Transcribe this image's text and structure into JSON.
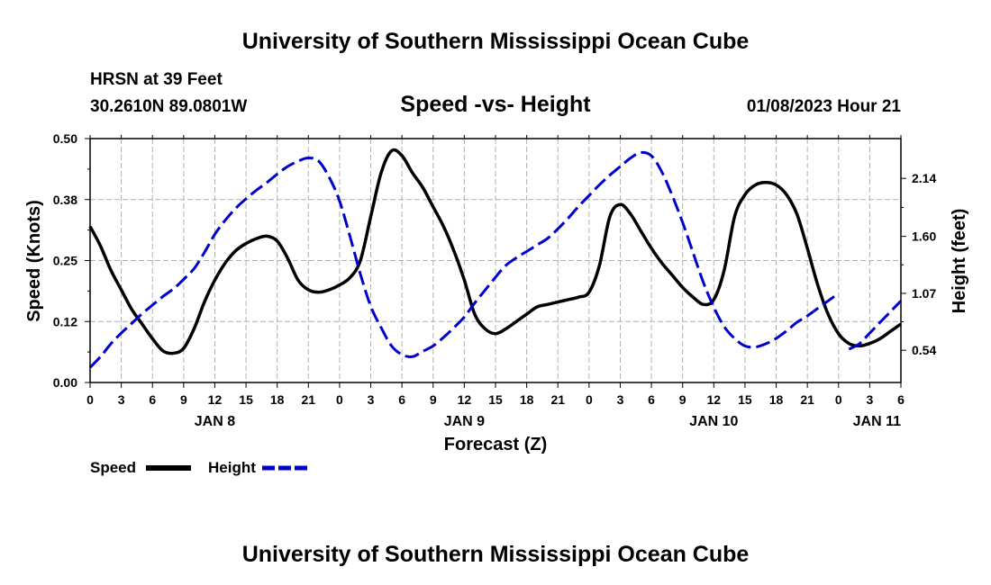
{
  "header": {
    "title": "University of Southern Mississippi Ocean Cube",
    "station": "HRSN at 39 Feet",
    "location": "30.2610N  89.0801W",
    "chart_title": "Speed -vs- Height",
    "timestamp": "01/08/2023 Hour 21",
    "footer_title": "University of Southern Mississippi Ocean Cube"
  },
  "colors": {
    "speed": "#000000",
    "height": "#0000cc",
    "grid": "#aaaaaa"
  },
  "chart_data": {
    "type": "line",
    "title": "Speed -vs- Height",
    "xlabel": "Forecast (Z)",
    "ylabel": "Speed (Knots)",
    "y2label": "Height (feet)",
    "xlim": [
      0,
      78
    ],
    "ylim": [
      0,
      0.5
    ],
    "y2lim": [
      0.24,
      2.51
    ],
    "x_tick_step": 3,
    "x_tick_labels": [
      "0",
      "3",
      "6",
      "9",
      "12",
      "15",
      "18",
      "21",
      "0",
      "3",
      "6",
      "9",
      "12",
      "15",
      "18",
      "21",
      "0",
      "3",
      "6",
      "9",
      "12",
      "15",
      "18",
      "21",
      "0",
      "3",
      "6"
    ],
    "y_ticks": [
      0,
      0.125,
      0.25,
      0.375,
      0.5
    ],
    "y_tick_labels": [
      "0.00",
      "0.12",
      "0.25",
      "0.38",
      "0.50"
    ],
    "y2_ticks": [
      0.54,
      1.07,
      1.6,
      2.14
    ],
    "y2_tick_labels": [
      "0.54",
      "1.07",
      "1.60",
      "2.14"
    ],
    "day_labels": [
      {
        "label": "JAN 8",
        "x": 12
      },
      {
        "label": "JAN 9",
        "x": 36
      },
      {
        "label": "JAN 10",
        "x": 60
      },
      {
        "label": "JAN 11",
        "x": 78
      }
    ],
    "series": [
      {
        "name": "Speed",
        "axis": "left",
        "style": "solid",
        "x": [
          0,
          1,
          2,
          3,
          4,
          5,
          6,
          7,
          8,
          9,
          10,
          11,
          12,
          13,
          14,
          15,
          16,
          17,
          18,
          19,
          20,
          21,
          22,
          23,
          24,
          25,
          26,
          27,
          28,
          29,
          30,
          31,
          32,
          33,
          34,
          35,
          36,
          37,
          38,
          39,
          40,
          41,
          42,
          43,
          44,
          45,
          46,
          47,
          48,
          49,
          50,
          51,
          52,
          53,
          54,
          55,
          56,
          57,
          58,
          59,
          60,
          61,
          62,
          63,
          64,
          65,
          66,
          67,
          68,
          69,
          70,
          71,
          72,
          73,
          74,
          75,
          76,
          77,
          78
        ],
        "values": [
          0.32,
          0.28,
          0.23,
          0.19,
          0.15,
          0.12,
          0.09,
          0.065,
          0.06,
          0.07,
          0.11,
          0.165,
          0.21,
          0.245,
          0.27,
          0.285,
          0.295,
          0.3,
          0.29,
          0.255,
          0.21,
          0.19,
          0.185,
          0.19,
          0.2,
          0.215,
          0.25,
          0.34,
          0.43,
          0.475,
          0.465,
          0.43,
          0.4,
          0.36,
          0.32,
          0.27,
          0.21,
          0.14,
          0.11,
          0.1,
          0.11,
          0.125,
          0.14,
          0.155,
          0.16,
          0.165,
          0.17,
          0.175,
          0.185,
          0.24,
          0.34,
          0.365,
          0.345,
          0.31,
          0.275,
          0.245,
          0.22,
          0.195,
          0.175,
          0.16,
          0.17,
          0.23,
          0.34,
          0.385,
          0.405,
          0.41,
          0.405,
          0.385,
          0.345,
          0.275,
          0.2,
          0.14,
          0.1,
          0.08,
          0.075,
          0.08,
          0.09,
          0.105,
          0.12
        ]
      },
      {
        "name": "Height",
        "axis": "right",
        "style": "dashed",
        "x": [
          0,
          1,
          2,
          3,
          4,
          5,
          6,
          7,
          8,
          9,
          10,
          11,
          12,
          13,
          14,
          15,
          16,
          17,
          18,
          19,
          20,
          21,
          22,
          23,
          24,
          25,
          26,
          27,
          28,
          29,
          30,
          31,
          32,
          33,
          34,
          35,
          36,
          37,
          38,
          39,
          40,
          41,
          42,
          43,
          44,
          45,
          46,
          47,
          48,
          49,
          50,
          51,
          52,
          53,
          54,
          55,
          56,
          57,
          58,
          59,
          60,
          61,
          62,
          63,
          64,
          65,
          66,
          67,
          68,
          69,
          70,
          71,
          72,
          73,
          74,
          75,
          76,
          77,
          78
        ],
        "values": [
          0.38,
          0.48,
          0.6,
          0.7,
          0.79,
          0.88,
          0.96,
          1.04,
          1.11,
          1.2,
          1.3,
          1.45,
          1.62,
          1.75,
          1.86,
          1.95,
          2.03,
          2.1,
          2.18,
          2.25,
          2.3,
          2.33,
          2.3,
          2.15,
          1.93,
          1.6,
          1.25,
          0.95,
          0.75,
          0.58,
          0.5,
          0.48,
          0.53,
          0.58,
          0.66,
          0.75,
          0.85,
          0.98,
          1.1,
          1.22,
          1.33,
          1.4,
          1.46,
          1.52,
          1.58,
          1.67,
          1.77,
          1.88,
          1.98,
          2.08,
          2.17,
          2.25,
          2.33,
          2.38,
          2.35,
          2.2,
          1.98,
          1.73,
          1.45,
          1.17,
          0.94,
          0.76,
          0.65,
          0.58,
          0.57,
          0.6,
          0.65,
          0.72,
          0.8,
          0.86,
          0.93,
          1.0,
          1.07,
          0.55,
          0.6,
          0.7,
          0.8,
          0.9,
          1.0
        ]
      }
    ],
    "legend": [
      {
        "label": "Speed",
        "style": "solid"
      },
      {
        "label": "Height",
        "style": "dashed"
      }
    ]
  }
}
